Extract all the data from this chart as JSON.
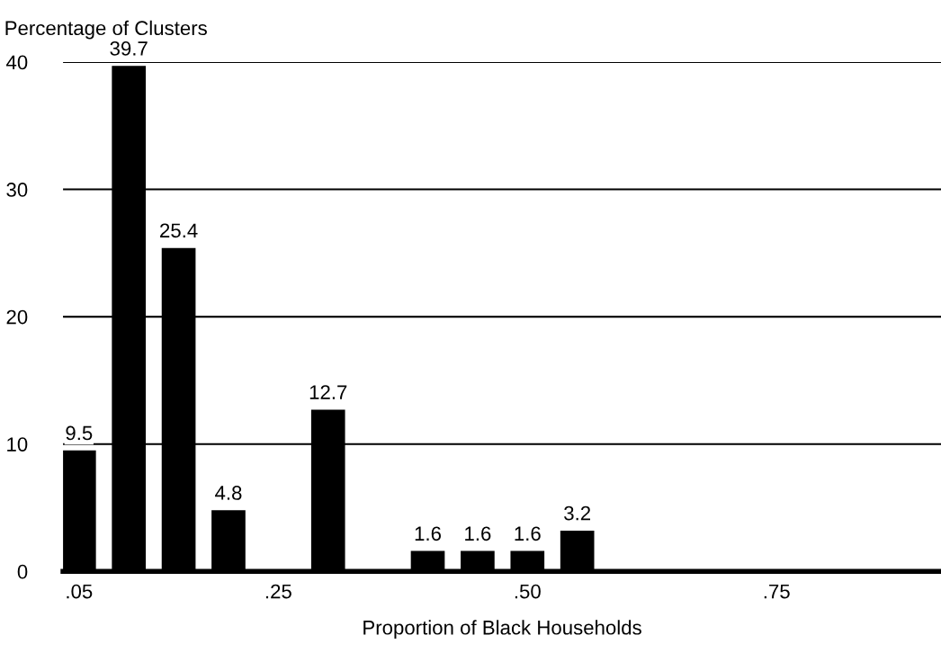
{
  "chart_data": {
    "type": "bar",
    "xlabel": "Proportion of Black Households",
    "ylabel": "Percentage of Clusters",
    "x": [
      0.05,
      0.1,
      0.15,
      0.2,
      0.25,
      0.3,
      0.35,
      0.4,
      0.45,
      0.5,
      0.55,
      0.6,
      0.65,
      0.7,
      0.75,
      0.8,
      0.85,
      0.9
    ],
    "values": [
      9.5,
      39.7,
      25.4,
      4.8,
      0,
      12.7,
      0,
      1.6,
      1.6,
      1.6,
      3.2,
      0,
      0,
      0,
      0,
      0,
      0,
      0
    ],
    "value_labels": [
      "9.5",
      "39.7",
      "25.4",
      "4.8",
      null,
      "12.7",
      null,
      "1.6",
      "1.6",
      "1.6",
      "3.2",
      null,
      null,
      null,
      null,
      null,
      null,
      null
    ],
    "color": "#000000",
    "xlim": [
      0.034,
      0.915
    ],
    "xticks": [
      {
        "value": 0.05,
        "label": ".05"
      },
      {
        "value": 0.25,
        "label": ".25"
      },
      {
        "value": 0.5,
        "label": ".50"
      },
      {
        "value": 0.75,
        "label": ".75"
      }
    ],
    "ylim": [
      0,
      40
    ],
    "yticks": [
      0,
      10,
      20,
      30,
      40
    ],
    "grid": "y"
  }
}
